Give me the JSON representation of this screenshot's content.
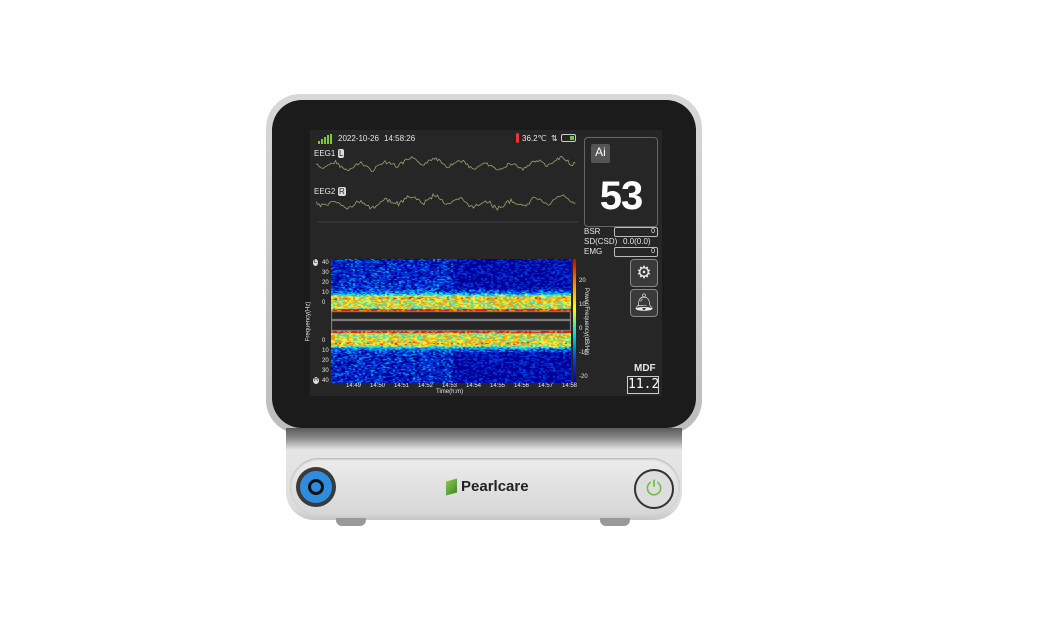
{
  "status": {
    "date": "2022-10-26",
    "time": "14:58:26",
    "temperature": "36.2℃",
    "signal_icon": "signal-bars-icon",
    "battery_icon": "battery-icon"
  },
  "eeg": [
    {
      "label": "EEG1",
      "badge": "L"
    },
    {
      "label": "EEG2",
      "badge": "R"
    }
  ],
  "index": {
    "ai_label": "Ai",
    "value": "53"
  },
  "params": [
    {
      "label": "BSR",
      "value": "0"
    },
    {
      "label": "SD(CSD)",
      "value": "0.0(0.0)"
    },
    {
      "label": "EMG",
      "value": "0"
    }
  ],
  "spectrogram": {
    "y_ticks": [
      "40",
      "30",
      "20",
      "10",
      "0"
    ],
    "x_ticks": [
      "14:49",
      "14:50",
      "14:51",
      "14:52",
      "14:53",
      "14:54",
      "14:55",
      "14:56",
      "14:57",
      "14:58"
    ],
    "xlabel": "Time(h:m)",
    "ylabel": "Frequency(Hz)",
    "colorbar_label": "Power/Frequency(dB/Hz)",
    "colorbar_ticks": [
      "20",
      "10",
      "0",
      "-10",
      "-20"
    ],
    "top_badge": "L",
    "bottom_badge": "R"
  },
  "mdf": {
    "label": "MDF",
    "value": "11.2"
  },
  "brand": "Pearlcare",
  "colors": {
    "wave": "#8fa86a",
    "power_led": "#6cbb3c",
    "connector": "#2f8de0"
  }
}
